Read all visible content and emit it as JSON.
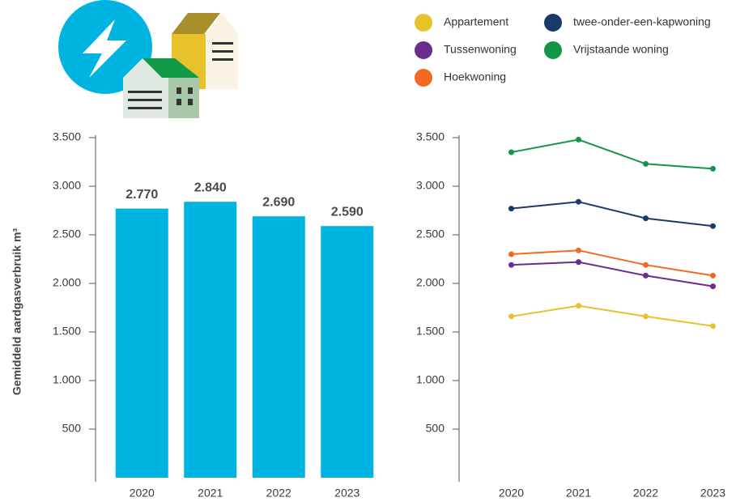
{
  "chart_data": [
    {
      "type": "bar",
      "ylabel": "Gemiddeld aardgasverbruik m³",
      "categories": [
        "2020",
        "2021",
        "2022",
        "2023"
      ],
      "values": [
        2770,
        2840,
        2690,
        2590
      ],
      "value_labels": [
        "2.770",
        "2.840",
        "2.690",
        "2.590"
      ],
      "color": "#00b4e1",
      "ylim": [
        0,
        3500
      ],
      "yticks": [
        500,
        {
          "value": 1000,
          "label": "1.000"
        },
        {
          "value": 1500,
          "label": "1.500"
        },
        {
          "value": 2000,
          "label": "2.000"
        },
        {
          "value": 2500,
          "label": "2.500"
        },
        {
          "value": 3000,
          "label": "3.000"
        },
        {
          "value": 3500,
          "label": "3.500"
        }
      ]
    },
    {
      "type": "line",
      "categories": [
        "2020",
        "2021",
        "2022",
        "2023"
      ],
      "series": [
        {
          "name": "Appartement",
          "color": "#e8c22a",
          "values": [
            1660,
            1770,
            1660,
            1560
          ]
        },
        {
          "name": "Tussenwoning",
          "color": "#6a2d8f",
          "values": [
            2190,
            2220,
            2080,
            1970
          ]
        },
        {
          "name": "Hoekwoning",
          "color": "#f26a21",
          "values": [
            2300,
            2340,
            2190,
            2080
          ]
        },
        {
          "name": "twee-onder-een-kapwoning",
          "color": "#1b3a6b",
          "values": [
            2770,
            2840,
            2670,
            2590
          ]
        },
        {
          "name": "Vrijstaande woning",
          "color": "#13964a",
          "values": [
            3350,
            3480,
            3230,
            3180
          ]
        }
      ],
      "ylim": [
        0,
        3500
      ],
      "yticks": [
        500,
        {
          "value": 1000,
          "label": "1.000"
        },
        {
          "value": 1500,
          "label": "1.500"
        },
        {
          "value": 2000,
          "label": "2.000"
        },
        {
          "value": 2500,
          "label": "2.500"
        },
        {
          "value": 3000,
          "label": "3.000"
        },
        {
          "value": 3500,
          "label": "3.500"
        }
      ]
    }
  ]
}
